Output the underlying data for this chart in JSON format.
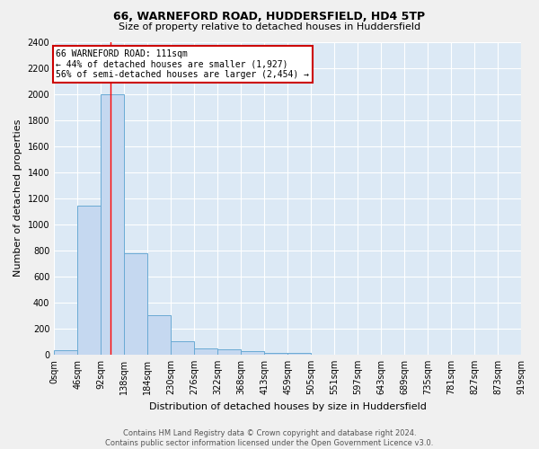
{
  "title_line1": "66, WARNEFORD ROAD, HUDDERSFIELD, HD4 5TP",
  "title_line2": "Size of property relative to detached houses in Huddersfield",
  "xlabel": "Distribution of detached houses by size in Huddersfield",
  "ylabel": "Number of detached properties",
  "footer_line1": "Contains HM Land Registry data © Crown copyright and database right 2024.",
  "footer_line2": "Contains public sector information licensed under the Open Government Licence v3.0.",
  "bin_labels": [
    "0sqm",
    "46sqm",
    "92sqm",
    "138sqm",
    "184sqm",
    "230sqm",
    "276sqm",
    "322sqm",
    "368sqm",
    "413sqm",
    "459sqm",
    "505sqm",
    "551sqm",
    "597sqm",
    "643sqm",
    "689sqm",
    "735sqm",
    "781sqm",
    "827sqm",
    "873sqm",
    "919sqm"
  ],
  "bar_values": [
    35,
    1140,
    2000,
    780,
    300,
    100,
    45,
    38,
    30,
    15,
    15,
    0,
    0,
    0,
    0,
    0,
    0,
    0,
    0,
    0
  ],
  "bar_color": "#c5d8f0",
  "bar_edge_color": "#6aaad4",
  "background_color": "#dce9f5",
  "grid_color": "#ffffff",
  "fig_background": "#f0f0f0",
  "red_line_x": 111,
  "bin_width": 46,
  "ylim": [
    0,
    2400
  ],
  "yticks": [
    0,
    200,
    400,
    600,
    800,
    1000,
    1200,
    1400,
    1600,
    1800,
    2000,
    2200,
    2400
  ],
  "annotation_title": "66 WARNEFORD ROAD: 111sqm",
  "annotation_line1": "← 44% of detached houses are smaller (1,927)",
  "annotation_line2": "56% of semi-detached houses are larger (2,454) →",
  "annotation_box_color": "#ffffff",
  "annotation_box_edge": "#cc0000",
  "title_fontsize": 9,
  "subtitle_fontsize": 8,
  "ylabel_fontsize": 8,
  "xlabel_fontsize": 8,
  "tick_fontsize": 7,
  "footer_fontsize": 6,
  "ann_fontsize": 7
}
